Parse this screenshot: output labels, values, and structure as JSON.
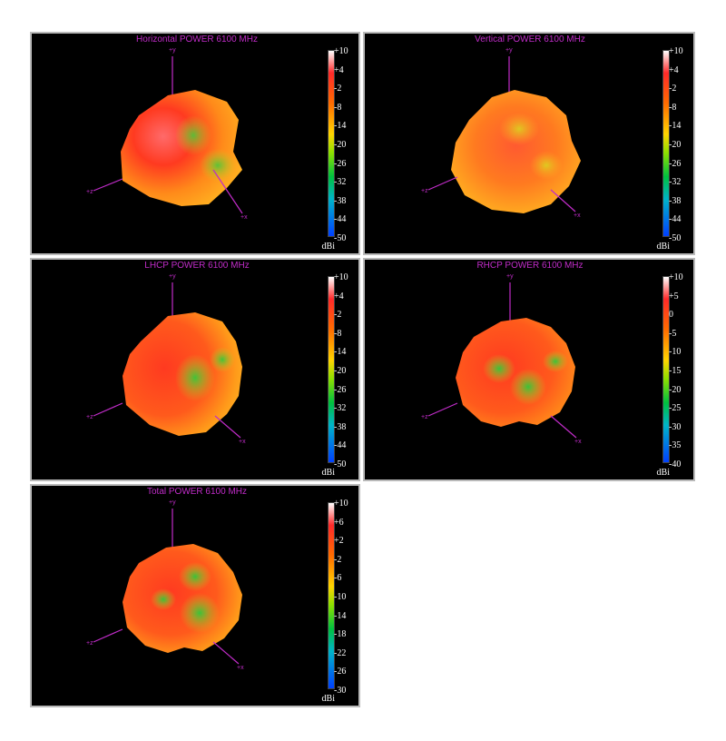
{
  "panels": [
    {
      "id": "horizontal",
      "title": "Horizontal POWER 6100  MHz",
      "ticks": [
        "+10",
        "+4",
        "-2",
        "-8",
        "-14",
        "-20",
        "-26",
        "-32",
        "-38",
        "-44",
        "-50"
      ],
      "unit": "dBi",
      "axes": {
        "y": "+y",
        "x": "+x",
        "z": "+z"
      }
    },
    {
      "id": "vertical",
      "title": "Vertical POWER 6100  MHz",
      "ticks": [
        "+10",
        "+4",
        "-2",
        "-8",
        "-14",
        "-20",
        "-26",
        "-32",
        "-38",
        "-44",
        "-50"
      ],
      "unit": "dBi",
      "axes": {
        "y": "+y",
        "x": "+x",
        "z": "+z"
      }
    },
    {
      "id": "lhcp",
      "title": "LHCP POWER 6100  MHz",
      "ticks": [
        "+10",
        "+4",
        "-2",
        "-8",
        "-14",
        "-20",
        "-26",
        "-32",
        "-38",
        "-44",
        "-50"
      ],
      "unit": "dBi",
      "axes": {
        "y": "+y",
        "x": "+x",
        "z": "+z"
      }
    },
    {
      "id": "rhcp",
      "title": "RHCP POWER 6100  MHz",
      "ticks": [
        "+10",
        "+5",
        "0",
        "-5",
        "-10",
        "-15",
        "-20",
        "-25",
        "-30",
        "-35",
        "-40"
      ],
      "unit": "dBi",
      "axes": {
        "y": "+y",
        "x": "+x",
        "z": "+z"
      }
    },
    {
      "id": "total",
      "title": "Total POWER 6100  MHz",
      "ticks": [
        "+10",
        "+6",
        "+2",
        "-2",
        "-6",
        "-10",
        "-14",
        "-18",
        "-22",
        "-26",
        "-30"
      ],
      "unit": "dBi",
      "axes": {
        "y": "+y",
        "x": "+x",
        "z": "+z"
      }
    }
  ],
  "colors": {
    "background": "#000000",
    "axis": "#c02cc8",
    "title": "#c02cc8",
    "surface_main": "#ff3a1f",
    "surface_mid": "#ff9a1a",
    "surface_low": "#30c83a",
    "colorbar": [
      "#ffffff",
      "#ff2020",
      "#ff8c00",
      "#ffff00",
      "#00c000",
      "#00c8c8",
      "#0040ff"
    ]
  }
}
